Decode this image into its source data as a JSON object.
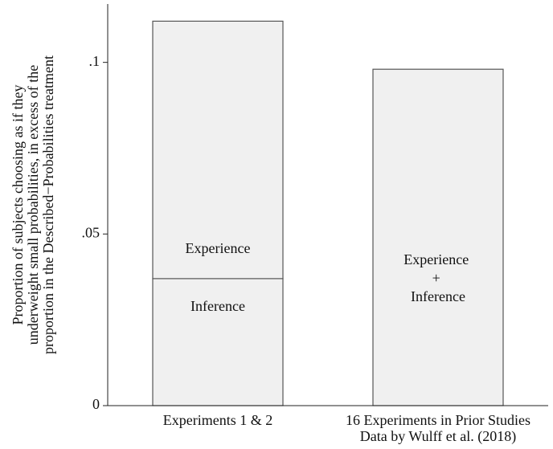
{
  "chart_data": {
    "type": "stacked_bar",
    "ylabel": [
      "Proportion of subjects choosing as if they",
      "underweight small probabilities, in excess of the",
      "proportion in the Described−Probabilities treatment"
    ],
    "categories": [
      "Experiments 1 & 2",
      "16 Experiments in Prior Studies"
    ],
    "x_sublabel": "Data by Wulff et al. (2018)",
    "series": [
      {
        "name": "Inference",
        "color": "#f0f0f0",
        "values": [
          0.037,
          null
        ]
      },
      {
        "name": "Experience",
        "color": "#f0f0f0",
        "values": [
          0.075,
          null
        ]
      },
      {
        "name": "Experience + Inference",
        "color": "#f0f0f0",
        "values": [
          null,
          0.098
        ]
      }
    ],
    "ylim": [
      0,
      0.117
    ],
    "yticks": [
      0,
      {
        "value": 0.05,
        "label": ".05"
      },
      {
        "value": 0.1,
        "label": ".1"
      }
    ]
  }
}
